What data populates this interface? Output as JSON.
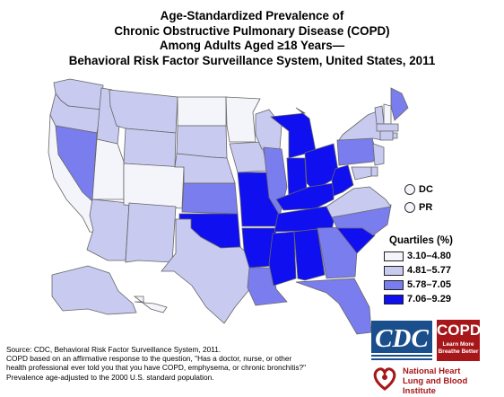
{
  "title_lines": [
    "Age-Standardized Prevalence of",
    "Chronic Obstructive Pulmonary Disease (COPD)",
    "Among Adults Aged ≥18 Years—",
    "Behavioral Risk Factor Surveillance System, United States, 2011"
  ],
  "legend": {
    "title": "Quartiles (%)",
    "items": [
      {
        "label": "3.10–4.80",
        "color": "#f4f4fb"
      },
      {
        "label": "4.81–5.77",
        "color": "#c8caf0"
      },
      {
        "label": "5.78–7.05",
        "color": "#7a7ded"
      },
      {
        "label": "7.06–9.29",
        "color": "#0f0ff0"
      }
    ]
  },
  "territories": [
    {
      "label": "DC",
      "quartile": 0
    },
    {
      "label": "PR",
      "quartile": 0
    }
  ],
  "state_quartiles": {
    "WA": 1,
    "OR": 1,
    "CA": 0,
    "NV": 2,
    "ID": 1,
    "MT": 1,
    "WY": 1,
    "UT": 0,
    "AZ": 1,
    "CO": 0,
    "NM": 1,
    "ND": 0,
    "SD": 1,
    "NE": 1,
    "KS": 2,
    "OK": 3,
    "TX": 1,
    "MN": 0,
    "IA": 1,
    "MO": 3,
    "AR": 3,
    "LA": 2,
    "WI": 1,
    "IL": 2,
    "MI": 3,
    "IN": 3,
    "OH": 3,
    "KY": 3,
    "TN": 3,
    "MS": 3,
    "AL": 3,
    "GA": 2,
    "FL": 2,
    "SC": 3,
    "NC": 2,
    "VA": 1,
    "WV": 3,
    "PA": 2,
    "NY": 1,
    "VT": 1,
    "NH": 0,
    "ME": 2,
    "MA": 1,
    "RI": 1,
    "CT": 1,
    "NJ": 1,
    "DE": 1,
    "MD": 1,
    "AK": 1,
    "HI": 0
  },
  "footnote_lines": [
    "Source: CDC, Behavioral Risk Factor Surveillance System, 2011.",
    "COPD based on an affirmative response to the question, \"Has a doctor, nurse, or other",
    "health professional ever told you that you have COPD, emphysema, or chronic bronchitis?\"",
    "Prevalence age-adjusted to the 2000 U.S. standard population."
  ],
  "logos": {
    "cdc": "CDC",
    "copd": "COPD",
    "copd_tagline": [
      "Learn More",
      "Breathe Better"
    ],
    "nhlbi": [
      "National Heart",
      "Lung and Blood Institute"
    ]
  }
}
